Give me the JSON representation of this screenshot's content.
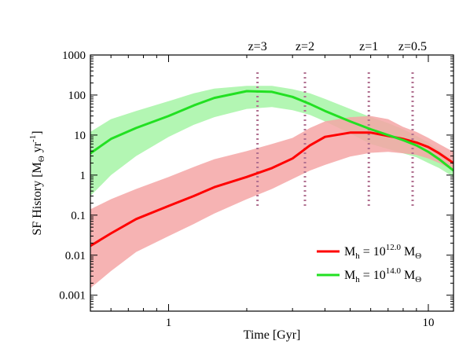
{
  "chart_data": {
    "type": "area",
    "xlabel": "Time [Gyr]",
    "ylabel": {
      "main": "SF History [M",
      "sub": "Θ",
      "unit": " yr",
      "sup": "-1",
      "close": "]"
    },
    "x_scale": "log",
    "y_scale": "log",
    "xlim": [
      0.5,
      12.5
    ],
    "ylim": [
      0.0004,
      1000
    ],
    "x_ticks": [
      {
        "value": 1,
        "label": "1"
      },
      {
        "value": 10,
        "label": "10"
      }
    ],
    "y_ticks": [
      {
        "value": 0.001,
        "label": "0.001"
      },
      {
        "value": 0.01,
        "label": "0.01"
      },
      {
        "value": 0.1,
        "label": "0.1"
      },
      {
        "value": 1,
        "label": "1"
      },
      {
        "value": 10,
        "label": "10"
      },
      {
        "value": 100,
        "label": "100"
      },
      {
        "value": 1000,
        "label": "1000"
      }
    ],
    "redshift_markers": [
      {
        "label": "z=3",
        "time": 2.2
      },
      {
        "label": "z=2",
        "time": 3.35
      },
      {
        "label": "z=1",
        "time": 5.9
      },
      {
        "label": "z=0.5",
        "time": 8.7
      }
    ],
    "series": [
      {
        "name": "Mh = 10^12.0 MΘ",
        "legend": {
          "base": "M",
          "sub": "h",
          "mid": " = 10",
          "sup": "12.0",
          "unit": " M",
          "unit_sub": "Θ"
        },
        "color": "#ff0000",
        "band_color": "#f4a6a6",
        "x": [
          0.5,
          0.6,
          0.75,
          1.0,
          1.25,
          1.5,
          2.0,
          2.5,
          3.0,
          3.5,
          4.0,
          5.0,
          6.0,
          7.0,
          8.0,
          9.0,
          10.0,
          11.0,
          12.5
        ],
        "y": [
          0.017,
          0.035,
          0.08,
          0.17,
          0.3,
          0.5,
          0.9,
          1.5,
          2.6,
          5.5,
          9.0,
          11.5,
          11.5,
          9.5,
          8.0,
          6.5,
          5.0,
          3.5,
          2.0
        ],
        "lower": [
          0.0015,
          0.004,
          0.012,
          0.03,
          0.06,
          0.11,
          0.25,
          0.45,
          0.8,
          1.3,
          1.8,
          2.9,
          3.6,
          3.8,
          3.5,
          3.2,
          2.6,
          2.0,
          1.3
        ],
        "upper": [
          0.14,
          0.25,
          0.45,
          0.9,
          1.6,
          2.5,
          4.0,
          6.0,
          8.5,
          15,
          22,
          28,
          30,
          25,
          16,
          12,
          8.5,
          6.0,
          3.8
        ]
      },
      {
        "name": "Mh = 10^14.0 MΘ",
        "legend": {
          "base": "M",
          "sub": "h",
          "mid": " = 10",
          "sup": "14.0",
          "unit": " M",
          "unit_sub": "Θ"
        },
        "color": "#22e022",
        "band_color": "#a6f4a6",
        "x": [
          0.5,
          0.6,
          0.75,
          1.0,
          1.25,
          1.5,
          2.0,
          2.5,
          3.0,
          3.5,
          4.0,
          5.0,
          6.0,
          7.0,
          8.0,
          9.0,
          10.0,
          11.0,
          12.5
        ],
        "y": [
          3.5,
          8.0,
          15,
          30,
          55,
          85,
          125,
          120,
          90,
          60,
          40,
          22,
          14,
          10,
          7.5,
          5.5,
          3.8,
          2.5,
          1.3
        ],
        "lower": [
          0.3,
          1.0,
          3.0,
          9.0,
          18,
          28,
          45,
          50,
          42,
          32,
          22,
          11,
          6.0,
          4.5,
          3.5,
          2.8,
          2.0,
          1.5,
          0.9
        ],
        "upper": [
          12,
          25,
          40,
          70,
          110,
          145,
          170,
          170,
          140,
          110,
          80,
          45,
          28,
          20,
          14,
          9.5,
          6.5,
          4.2,
          2.2
        ]
      }
    ],
    "legend_placement": "bottom-right",
    "grid": false
  }
}
